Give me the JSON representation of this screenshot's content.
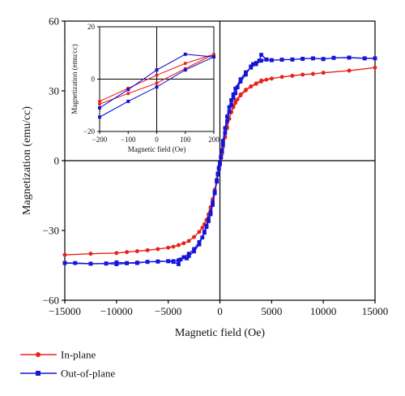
{
  "chart_data": [
    {
      "id": "main",
      "type": "line",
      "xlabel": "Magnetic field (Oe)",
      "ylabel": "Magnetization (emu/cc)",
      "xlim": [
        -15000,
        15000
      ],
      "ylim": [
        -60,
        60
      ],
      "xticks": [
        -15000,
        -10000,
        -5000,
        0,
        5000,
        10000,
        15000
      ],
      "yticks": [
        -60,
        -30,
        0,
        30,
        60
      ],
      "zero_lines": true,
      "series": [
        {
          "name": "In-plane",
          "color": "#e8231c",
          "marker": "circle",
          "x": [
            -15000,
            -12500,
            -10000,
            -9000,
            -8000,
            -7000,
            -6000,
            -5000,
            -4500,
            -4000,
            -3500,
            -3000,
            -2500,
            -2000,
            -1700,
            -1500,
            -1300,
            -1100,
            -900,
            -700,
            -500,
            -300,
            -200,
            -100,
            0,
            100,
            200,
            300,
            500,
            700,
            900,
            1100,
            1300,
            1500,
            2000,
            2500,
            3000,
            3500,
            4000,
            5000,
            6000,
            7000,
            8000,
            9000,
            10000,
            12500,
            15000,
            12500,
            10000,
            9000,
            8000,
            7000,
            6000,
            5000,
            4500,
            4000,
            3500,
            3000,
            2500,
            2000,
            1700,
            1500,
            1300,
            1100,
            900,
            700,
            500,
            300,
            200,
            100,
            0,
            -100,
            -200,
            -300,
            -500,
            -700,
            -900,
            -1100,
            -1300,
            -1500,
            -2000,
            -2500,
            -3000,
            -3500,
            -4000,
            -5000,
            -6000,
            -7000,
            -8000,
            -9000,
            -10000,
            -12500,
            -15000
          ],
          "y": [
            -40.5,
            -40,
            -39.7,
            -39.3,
            -38.9,
            -38.5,
            -38,
            -37.4,
            -37,
            -36.3,
            -35.5,
            -34.5,
            -32.8,
            -30.6,
            -28.8,
            -27.3,
            -25.5,
            -23.2,
            -20.5,
            -17,
            -13,
            -8,
            -5.5,
            -3,
            -1.5,
            1,
            3,
            6,
            10,
            14,
            18,
            21,
            23.5,
            25.5,
            28.5,
            30.5,
            32,
            33.2,
            34.5,
            35.3,
            36,
            36.5,
            37,
            37.3,
            37.8,
            38.7,
            40,
            38.7,
            37.8,
            37.3,
            37,
            36.5,
            36,
            35.3,
            34.8,
            34,
            33,
            31.8,
            30.2,
            28,
            26.3,
            24.8,
            23,
            20.8,
            18,
            14.5,
            10.5,
            6,
            3.5,
            1,
            -1.5,
            -3.5,
            -6,
            -8.5,
            -12.5,
            -16.5,
            -20,
            -23,
            -25.5,
            -27.3,
            -30.6,
            -32.8,
            -34.5,
            -35.5,
            -36.3,
            -37.4,
            -38,
            -38.5,
            -38.9,
            -39.3,
            -39.7,
            -40,
            -40.5
          ]
        },
        {
          "name": "Out-of-plane",
          "color": "#1515d8",
          "marker": "square",
          "x": [
            -15000,
            -12500,
            -11000,
            -10000,
            -9000,
            -8000,
            -7000,
            -6000,
            -5000,
            -4500,
            -4000,
            -3800,
            -3500,
            -3200,
            -3000,
            -2500,
            -2000,
            -1700,
            -1500,
            -1300,
            -1100,
            -900,
            -700,
            -500,
            -300,
            -200,
            -100,
            0,
            100,
            200,
            300,
            500,
            700,
            900,
            1100,
            1300,
            1500,
            2000,
            2500,
            3000,
            3500,
            4000,
            4500,
            5000,
            6000,
            7000,
            8000,
            9000,
            10000,
            11000,
            12500,
            14000,
            15000,
            14000,
            12500,
            11000,
            10000,
            9000,
            8000,
            7000,
            6000,
            5000,
            4500,
            4000,
            3800,
            3500,
            3200,
            3000,
            2500,
            2000,
            1700,
            1500,
            1300,
            1100,
            900,
            700,
            500,
            300,
            200,
            100,
            0,
            -100,
            -200,
            -300,
            -500,
            -700,
            -900,
            -1100,
            -1300,
            -1500,
            -2000,
            -2500,
            -3000,
            -3500,
            -4000,
            -4500,
            -5000,
            -6000,
            -7000,
            -8000,
            -9000,
            -10000,
            -11000,
            -12500,
            -14000,
            -15000
          ],
          "y": [
            -44,
            -44.3,
            -44.2,
            -44.5,
            -44.1,
            -44,
            -43.5,
            -43.3,
            -43.2,
            -43.5,
            -44.5,
            -42.5,
            -41.5,
            -42,
            -41,
            -39,
            -36,
            -33,
            -30.5,
            -28,
            -25,
            -22,
            -18,
            -13.5,
            -8.5,
            -5.5,
            -3,
            -1.5,
            1.5,
            4.5,
            8.5,
            14,
            19,
            23,
            26,
            28.5,
            31,
            35,
            38,
            40,
            41.5,
            43,
            43.5,
            43.2,
            43.4,
            43.5,
            43.8,
            44,
            43.7,
            44.2,
            44.3,
            44,
            44,
            44,
            44.3,
            44.2,
            43.7,
            44,
            43.8,
            43.5,
            43.4,
            43.2,
            43.5,
            45.5,
            43,
            42,
            41.5,
            40.5,
            37,
            34,
            31.5,
            29,
            27,
            24,
            21,
            17,
            12,
            7,
            4,
            1.5,
            -1,
            -3.5,
            -6,
            -9,
            -14,
            -19,
            -23,
            -26,
            -28.5,
            -31,
            -35,
            -38,
            -40,
            -41.5,
            -42.8,
            -43.2,
            -43.2,
            -43.4,
            -43.5,
            -43.8,
            -44,
            -43.7,
            -44.2,
            -44.3,
            -44,
            -44
          ]
        }
      ],
      "legend": {
        "placement": "below",
        "entries": [
          "In-plane",
          "Out-of-plane"
        ]
      }
    },
    {
      "id": "inset",
      "type": "line",
      "xlabel": "Magnetic field (Oe)",
      "ylabel": "Magnetization (emu/cc)",
      "xlim": [
        -200,
        200
      ],
      "ylim": [
        -20,
        20
      ],
      "xticks": [
        -200,
        -100,
        0,
        100,
        200
      ],
      "yticks": [
        -20,
        0,
        20
      ],
      "zero_lines": true,
      "series": [
        {
          "name": "In-plane",
          "color": "#e8231c",
          "marker": "circle",
          "x": [
            -200,
            -100,
            0,
            100,
            200,
            100,
            0,
            -100,
            -200
          ],
          "y": [
            -9.5,
            -5.5,
            -1.5,
            4,
            9.5,
            6,
            1.5,
            -3.5,
            -8.5
          ]
        },
        {
          "name": "Out-of-plane",
          "color": "#1515d8",
          "marker": "square",
          "x": [
            -200,
            -100,
            0,
            100,
            200,
            100,
            0,
            -100,
            -200
          ],
          "y": [
            -14.5,
            -8.5,
            -3,
            3.5,
            8.5,
            9.5,
            3.5,
            -4,
            -11
          ]
        }
      ]
    }
  ]
}
